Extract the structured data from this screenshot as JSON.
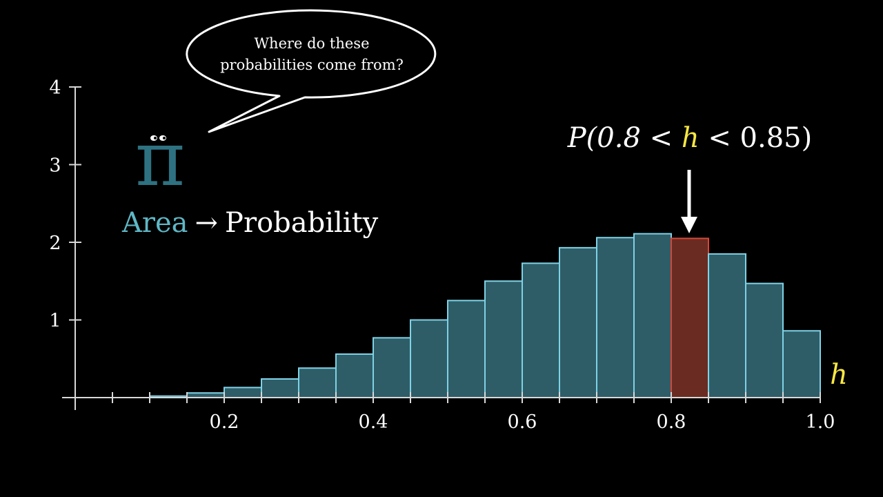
{
  "speech_bubble": {
    "line1": "Where do these",
    "line2": "probabilities come from?"
  },
  "character": {
    "glyph": "π",
    "name": "pi-creature"
  },
  "annotation": {
    "area_word": "Area",
    "arrow": "→",
    "probability_word": "Probability",
    "prob_prefix": "P(0.8 < ",
    "prob_var": "h",
    "prob_suffix": " < 0.85)"
  },
  "colors": {
    "background": "#000000",
    "bar_fill": "#2e5d68",
    "bar_stroke": "#7fd3e6",
    "highlight_fill": "#6a2c22",
    "highlight_stroke": "#d5473a",
    "axis": "#d9d9d9",
    "text": "#ffffff",
    "accent_yellow": "#f7e743",
    "pi_teal": "#2e7282",
    "area_teal": "#5fb7c6"
  },
  "chart_data": {
    "type": "bar",
    "title": "",
    "xlabel": "h",
    "ylabel": "",
    "xlim": [
      0,
      1.0
    ],
    "ylim": [
      0,
      4
    ],
    "bin_width": 0.05,
    "bins_start": [
      0.0,
      0.05,
      0.1,
      0.15,
      0.2,
      0.25,
      0.3,
      0.35,
      0.4,
      0.45,
      0.5,
      0.55,
      0.6,
      0.65,
      0.7,
      0.75,
      0.8,
      0.85,
      0.9,
      0.95
    ],
    "values": [
      0.0,
      0.0,
      0.02,
      0.06,
      0.13,
      0.24,
      0.38,
      0.56,
      0.77,
      1.0,
      1.25,
      1.5,
      1.73,
      1.93,
      2.06,
      2.11,
      2.05,
      1.85,
      1.47,
      0.86
    ],
    "highlight_range": [
      0.8,
      0.85
    ],
    "x_ticks": [
      0.05,
      0.1,
      0.15,
      0.2,
      0.25,
      0.3,
      0.35,
      0.4,
      0.45,
      0.5,
      0.55,
      0.6,
      0.65,
      0.7,
      0.75,
      0.8,
      0.85,
      0.9,
      0.95,
      1.0
    ],
    "x_tick_labels": [
      {
        "value": 0.2,
        "text": "0.2"
      },
      {
        "value": 0.4,
        "text": "0.4"
      },
      {
        "value": 0.6,
        "text": "0.6"
      },
      {
        "value": 0.8,
        "text": "0.8"
      },
      {
        "value": 1.0,
        "text": "1.0"
      }
    ],
    "y_ticks": [
      {
        "value": 1,
        "text": "1"
      },
      {
        "value": 2,
        "text": "2"
      },
      {
        "value": 3,
        "text": "3"
      },
      {
        "value": 4,
        "text": "4"
      }
    ],
    "grid": false,
    "legend": "none"
  }
}
